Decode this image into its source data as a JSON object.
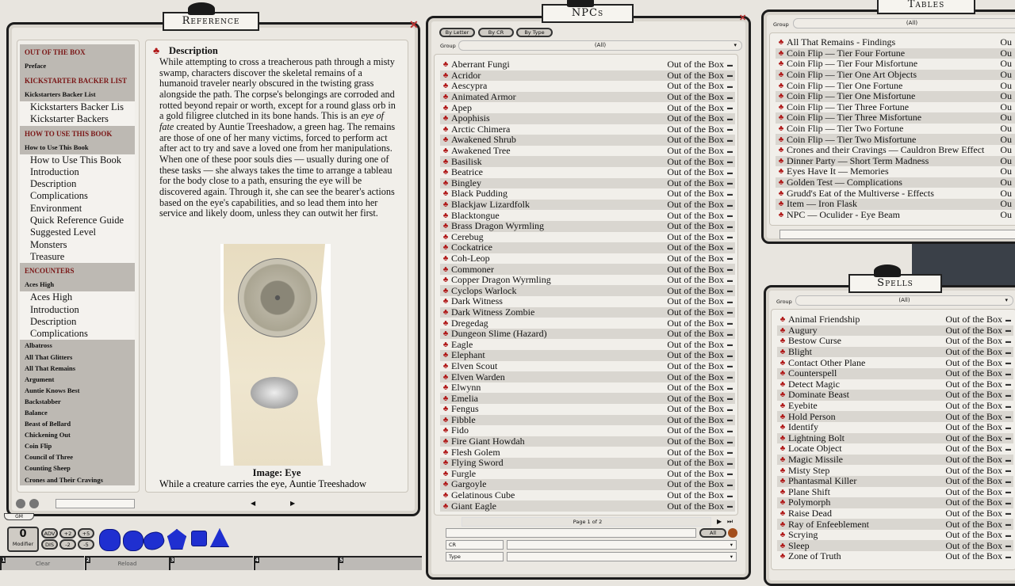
{
  "reference": {
    "title": "Reference",
    "sidebar": [
      {
        "t": "sh",
        "label": "OUT OF THE BOX"
      },
      {
        "t": "ss",
        "label": "Preface"
      },
      {
        "t": "sh",
        "label": "KICKSTARTER BACKER LIST"
      },
      {
        "t": "ss",
        "label": "Kickstarters Backer List"
      },
      {
        "t": "si",
        "label": "Kickstarters Backer Lis"
      },
      {
        "t": "si",
        "label": "Kickstarter Backers"
      },
      {
        "t": "sh",
        "label": "HOW TO USE THIS BOOK"
      },
      {
        "t": "ss",
        "label": "How to Use This Book"
      },
      {
        "t": "si",
        "label": "How to Use This Book"
      },
      {
        "t": "si",
        "label": "Introduction"
      },
      {
        "t": "si",
        "label": "Description"
      },
      {
        "t": "si",
        "label": "Complications"
      },
      {
        "t": "si",
        "label": "Environment"
      },
      {
        "t": "si",
        "label": "Quick Reference Guide"
      },
      {
        "t": "si",
        "label": "Suggested Level"
      },
      {
        "t": "si",
        "label": "Monsters"
      },
      {
        "t": "si",
        "label": "Treasure"
      },
      {
        "t": "sh",
        "label": "ENCOUNTERS"
      },
      {
        "t": "ss",
        "label": "Aces High"
      },
      {
        "t": "si",
        "label": "Aces High"
      },
      {
        "t": "si",
        "label": "Introduction"
      },
      {
        "t": "si",
        "label": "Description"
      },
      {
        "t": "si",
        "label": "Complications"
      },
      {
        "t": "sg",
        "label": "Albatross"
      },
      {
        "t": "sg",
        "label": "All That Glitters"
      },
      {
        "t": "sg",
        "label": "All That Remains"
      },
      {
        "t": "sg",
        "label": "Argument"
      },
      {
        "t": "sg",
        "label": "Auntie Knows Best"
      },
      {
        "t": "sg",
        "label": "Backstabber"
      },
      {
        "t": "sg",
        "label": "Balance"
      },
      {
        "t": "sg",
        "label": "Beast of Bellard"
      },
      {
        "t": "sg",
        "label": "Chickening Out"
      },
      {
        "t": "sg",
        "label": "Coin Flip"
      },
      {
        "t": "sg",
        "label": "Council of Three"
      },
      {
        "t": "sg",
        "label": "Counting Sheep"
      },
      {
        "t": "sg",
        "label": "Crones and Their Cravings"
      }
    ],
    "heading": "Description",
    "para_before": "While attempting to cross a treacherous path through a misty swamp, characters discover the skeletal remains of a humanoid traveler nearly obscured in the twisting grass alongside the path. The corpse's belongings are corroded and rotted beyond repair or worth, except for a round glass orb in a gold filigree clutched in its bone hands. This is an ",
    "para_em": "eye of fate",
    "para_after": " created by Auntie Treeshadow, a green hag. The remains are those of one of her many victims, forced to perform act after act to try and save a loved one from her manipulations. When one of these poor souls dies — usually during one of these tasks — she always takes the time to arrange a tableau for the body close to a path, ensuring the eye will be discovered again. Through it, she can see the bearer's actions based on the eye's capabilities, and so lead them into her service      and likely doom, unless they can outwit her first.",
    "caption": "Image: Eye",
    "next_text": "While a creature carries the eye, Auntie Treeshadow"
  },
  "bottom": {
    "gm_tab": "GM",
    "modifier_value": "0",
    "modifier_label": "Modifier",
    "mod_buttons": [
      "ADV",
      "+2",
      "+5",
      "DIS",
      "-2",
      "-5"
    ],
    "hotkeys": [
      {
        "n": "1",
        "label": "Clear"
      },
      {
        "n": "2",
        "label": "Reload"
      },
      {
        "n": "3",
        "label": ""
      },
      {
        "n": "4",
        "label": ""
      },
      {
        "n": "5",
        "label": ""
      }
    ]
  },
  "npcs": {
    "title": "NPCs",
    "tabs": [
      "By Letter",
      "By CR",
      "By Type"
    ],
    "group_label": "Group",
    "group_value": "(All)",
    "source": "Out of the Box",
    "items": [
      "Aberrant Fungi",
      "Acridor",
      "Aescypra",
      "Animated Armor",
      "Apep",
      "Apophisis",
      "Arctic Chimera",
      "Awakened Shrub",
      "Awakened Tree",
      "Basilisk",
      "Beatrice",
      "Bingley",
      "Black Pudding",
      "Blackjaw Lizardfolk",
      "Blacktongue",
      "Brass Dragon Wyrmling",
      "Cerebug",
      "Cockatrice",
      "Coh-Leop",
      "Commoner",
      "Copper Dragon Wyrmling",
      "Cyclops Warlock",
      "Dark Witness",
      "Dark Witness Zombie",
      "Dregedag",
      "Dungeon Slime (Hazard)",
      "Eagle",
      "Elephant",
      "Elven Scout",
      "Elven Warden",
      "Elwynn",
      "Emelia",
      "Fengus",
      "Fibble",
      "Fido",
      "Fire Giant Howdah",
      "Flesh Golem",
      "Flying Sword",
      "Furgle",
      "Gargoyle",
      "Gelatinous Cube",
      "Giant Eagle"
    ],
    "page": "Page 1 of 2",
    "all_button": "All",
    "filter_cr": "CR",
    "filter_type": "Type"
  },
  "tables": {
    "title": "Tables",
    "group_label": "Group",
    "group_value": "(All)",
    "source": "Ou",
    "items": [
      "All That Remains - Findings",
      "Coin Flip — Tier Four Fortune",
      "Coin Flip — Tier Four Misfortune",
      "Coin Flip — Tier One Art Objects",
      "Coin Flip — Tier One Fortune",
      "Coin Flip — Tier One Misfortune",
      "Coin Flip — Tier Three Fortune",
      "Coin Flip — Tier Three Misfortune",
      "Coin Flip — Tier Two Fortune",
      "Coin Flip — Tier Two Misfortune",
      "Crones and their Cravings — Cauldron Brew Effect",
      "Dinner Party — Short Term Madness",
      "Eyes Have It — Memories",
      "Golden Test — Complications",
      "Grudd's Eat of the Multiverse - Effects",
      "Item — Iron Flask",
      "NPC — Oculider - Eye Beam"
    ]
  },
  "spells": {
    "title": "Spells",
    "group_label": "Group",
    "group_value": "(All)",
    "source": "Out of the Box",
    "items": [
      "Animal Friendship",
      "Augury",
      "Bestow Curse",
      "Blight",
      "Contact Other Plane",
      "Counterspell",
      "Detect Magic",
      "Dominate Beast",
      "Eyebite",
      "Hold Person",
      "Identify",
      "Lightning Bolt",
      "Locate Object",
      "Magic Missile",
      "Misty Step",
      "Phantasmal Killer",
      "Plane Shift",
      "Polymorph",
      "Raise Dead",
      "Ray of Enfeeblement",
      "Scrying",
      "Sleep",
      "Zone of Truth"
    ]
  },
  "colors": {
    "accent_red": "#b01818",
    "frame": "#1c1c1c",
    "parchment": "#ebe8e2",
    "dice_blue": "#1f2fd0"
  }
}
